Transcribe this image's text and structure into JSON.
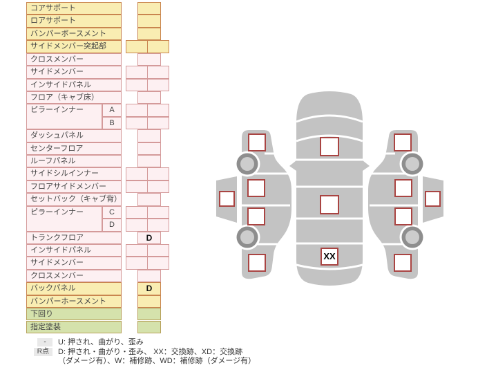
{
  "table": {
    "rows": [
      {
        "label": "コアサポート",
        "color": "yellow",
        "cell": "single",
        "mark": ""
      },
      {
        "label": "ロアサポート",
        "color": "yellow",
        "cell": "single",
        "mark": ""
      },
      {
        "label": "バンパーボースメント",
        "color": "yellow",
        "cell": "single",
        "mark": ""
      },
      {
        "label": "サイドメンバー突起部",
        "color": "yellow",
        "cell": "double",
        "mark": ""
      },
      {
        "label": "クロスメンバー",
        "color": "pink",
        "cell": "single",
        "mark": ""
      },
      {
        "label": "サイドメンバー",
        "color": "pink",
        "cell": "double",
        "mark": ""
      },
      {
        "label": "インサイドパネル",
        "color": "pink",
        "cell": "double",
        "mark": ""
      },
      {
        "label": "フロア（キャブ床）",
        "color": "pink",
        "cell": "single",
        "mark": ""
      },
      {
        "label": "ピラーインナー",
        "sub": "A",
        "labelSpan": 2,
        "color": "pink",
        "cell": "double",
        "mark": ""
      },
      {
        "label": "",
        "sub": "B",
        "skipLabel": true,
        "color": "pink",
        "cell": "double",
        "mark": ""
      },
      {
        "label": "ダッシュパネル",
        "color": "pink",
        "cell": "single",
        "mark": ""
      },
      {
        "label": "センターフロア",
        "color": "pink",
        "cell": "single",
        "mark": ""
      },
      {
        "label": "ルーフパネル",
        "color": "pink",
        "cell": "single",
        "mark": ""
      },
      {
        "label": "サイドシルインナー",
        "color": "pink",
        "cell": "double",
        "mark": ""
      },
      {
        "label": "フロアサイドメンバー",
        "color": "pink",
        "cell": "double",
        "mark": ""
      },
      {
        "label": "セットバック（キャブ背）",
        "color": "pink",
        "cell": "single",
        "mark": ""
      },
      {
        "label": "ピラーインナー",
        "sub": "C",
        "labelSpan": 2,
        "color": "pink",
        "cell": "double",
        "mark": ""
      },
      {
        "label": "",
        "sub": "D",
        "skipLabel": true,
        "color": "pink",
        "cell": "double",
        "mark": ""
      },
      {
        "label": "トランクフロア",
        "color": "pink",
        "cell": "single",
        "mark": "D"
      },
      {
        "label": "インサイドパネル",
        "color": "pink",
        "cell": "double",
        "mark": ""
      },
      {
        "label": "サイドメンバー",
        "color": "pink",
        "cell": "double",
        "mark": ""
      },
      {
        "label": "クロスメンバー",
        "color": "pink",
        "cell": "single",
        "mark": ""
      },
      {
        "label": "バックパネル",
        "color": "yellow",
        "cell": "single",
        "mark": "D"
      },
      {
        "label": "バンパーホースメント",
        "color": "yellow",
        "cell": "single",
        "mark": ""
      },
      {
        "label": "下回り",
        "color": "green",
        "cell": "single",
        "mark": ""
      },
      {
        "label": "指定塗装",
        "color": "green",
        "cell": "single",
        "mark": ""
      }
    ]
  },
  "legend": {
    "row1_key": "-",
    "row1_text": "U: 押され、曲がり、歪み",
    "row2_key": "R点",
    "row2_text": "D: 押され・曲がり・歪み、 XX：交換跡、XD：交換跡",
    "row3_text": "（ダメージ有）、W：補修跡、WD：補修跡（ダメージ有）"
  },
  "diagram": {
    "top_view_markers": [
      "",
      "",
      "XX"
    ],
    "left_view_markers": [
      "",
      "",
      "",
      "",
      ""
    ],
    "right_view_markers": [
      "",
      "",
      "",
      "",
      ""
    ]
  },
  "colors": {
    "yellow_bg": "#f9edb2",
    "yellow_border": "#c9854f",
    "pink_bg": "#fdf0f2",
    "pink_border": "#d49a9a",
    "green_bg": "#d5e2ac",
    "green_border": "#b7a05a",
    "legend_key_bg": "#e9e9e9",
    "car_body_gray": "#c3c3c3",
    "wheel_ring_gray": "#8e8e8e",
    "wheel_hub_gray": "#cdcdcd",
    "marker_border_red": "#a94442",
    "mark_text": "#000000"
  }
}
